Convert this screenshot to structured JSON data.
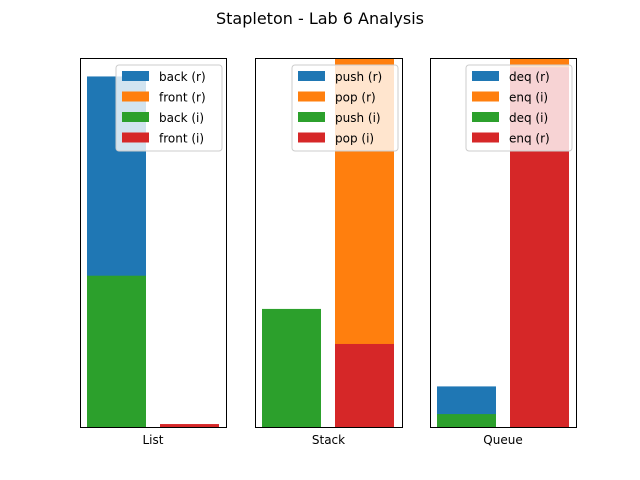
{
  "title": "Stapleton - Lab 6 Analysis",
  "chart_data": [
    {
      "type": "bar",
      "xlabel": "List",
      "categories": [
        "back",
        "front"
      ],
      "ylim": [
        0,
        1.0
      ],
      "yticks": "hidden",
      "legend_position": "upper right",
      "series": [
        {
          "name": "back (r)",
          "category": "back",
          "value": 0.95,
          "color": "#1f77b4",
          "alpha": 1.0
        },
        {
          "name": "front (r)",
          "category": "front",
          "value": 0.0,
          "color": "#ff7f0e",
          "alpha": 1.0
        },
        {
          "name": "back (i)",
          "category": "back",
          "value": 0.41,
          "color": "#2ca02c",
          "alpha": 1.0
        },
        {
          "name": "front (i)",
          "category": "front",
          "value": 0.008,
          "color": "#d62728",
          "alpha": 1.0
        }
      ]
    },
    {
      "type": "bar",
      "xlabel": "Stack",
      "categories": [
        "push",
        "pop"
      ],
      "ylim": [
        0,
        1.0
      ],
      "yticks": "hidden",
      "legend_position": "upper right",
      "series": [
        {
          "name": "push (r)",
          "category": "push",
          "value": 0.0,
          "color": "#1f77b4",
          "alpha": 1.0
        },
        {
          "name": "pop (r)",
          "category": "pop",
          "value": 1.0,
          "color": "#ff7f0e",
          "alpha": 1.0
        },
        {
          "name": "push (i)",
          "category": "push",
          "value": 0.32,
          "color": "#2ca02c",
          "alpha": 1.0
        },
        {
          "name": "pop (i)",
          "category": "pop",
          "value": 0.225,
          "color": "#d62728",
          "alpha": 1.0
        }
      ]
    },
    {
      "type": "bar",
      "xlabel": "Queue",
      "categories": [
        "deq",
        "enq"
      ],
      "ylim": [
        0,
        1.0
      ],
      "yticks": "hidden",
      "legend_position": "upper right",
      "series": [
        {
          "name": "deq (r)",
          "category": "deq",
          "value": 0.11,
          "color": "#1f77b4",
          "alpha": 1.0
        },
        {
          "name": "enq (i)",
          "category": "enq",
          "value": 1.0,
          "color": "#ff7f0e",
          "alpha": 1.0
        },
        {
          "name": "deq (i)",
          "category": "deq",
          "value": 0.035,
          "color": "#2ca02c",
          "alpha": 1.0
        },
        {
          "name": "enq (r)",
          "category": "enq",
          "value": 0.975,
          "color": "#d62728",
          "alpha": 1.0
        }
      ]
    }
  ]
}
